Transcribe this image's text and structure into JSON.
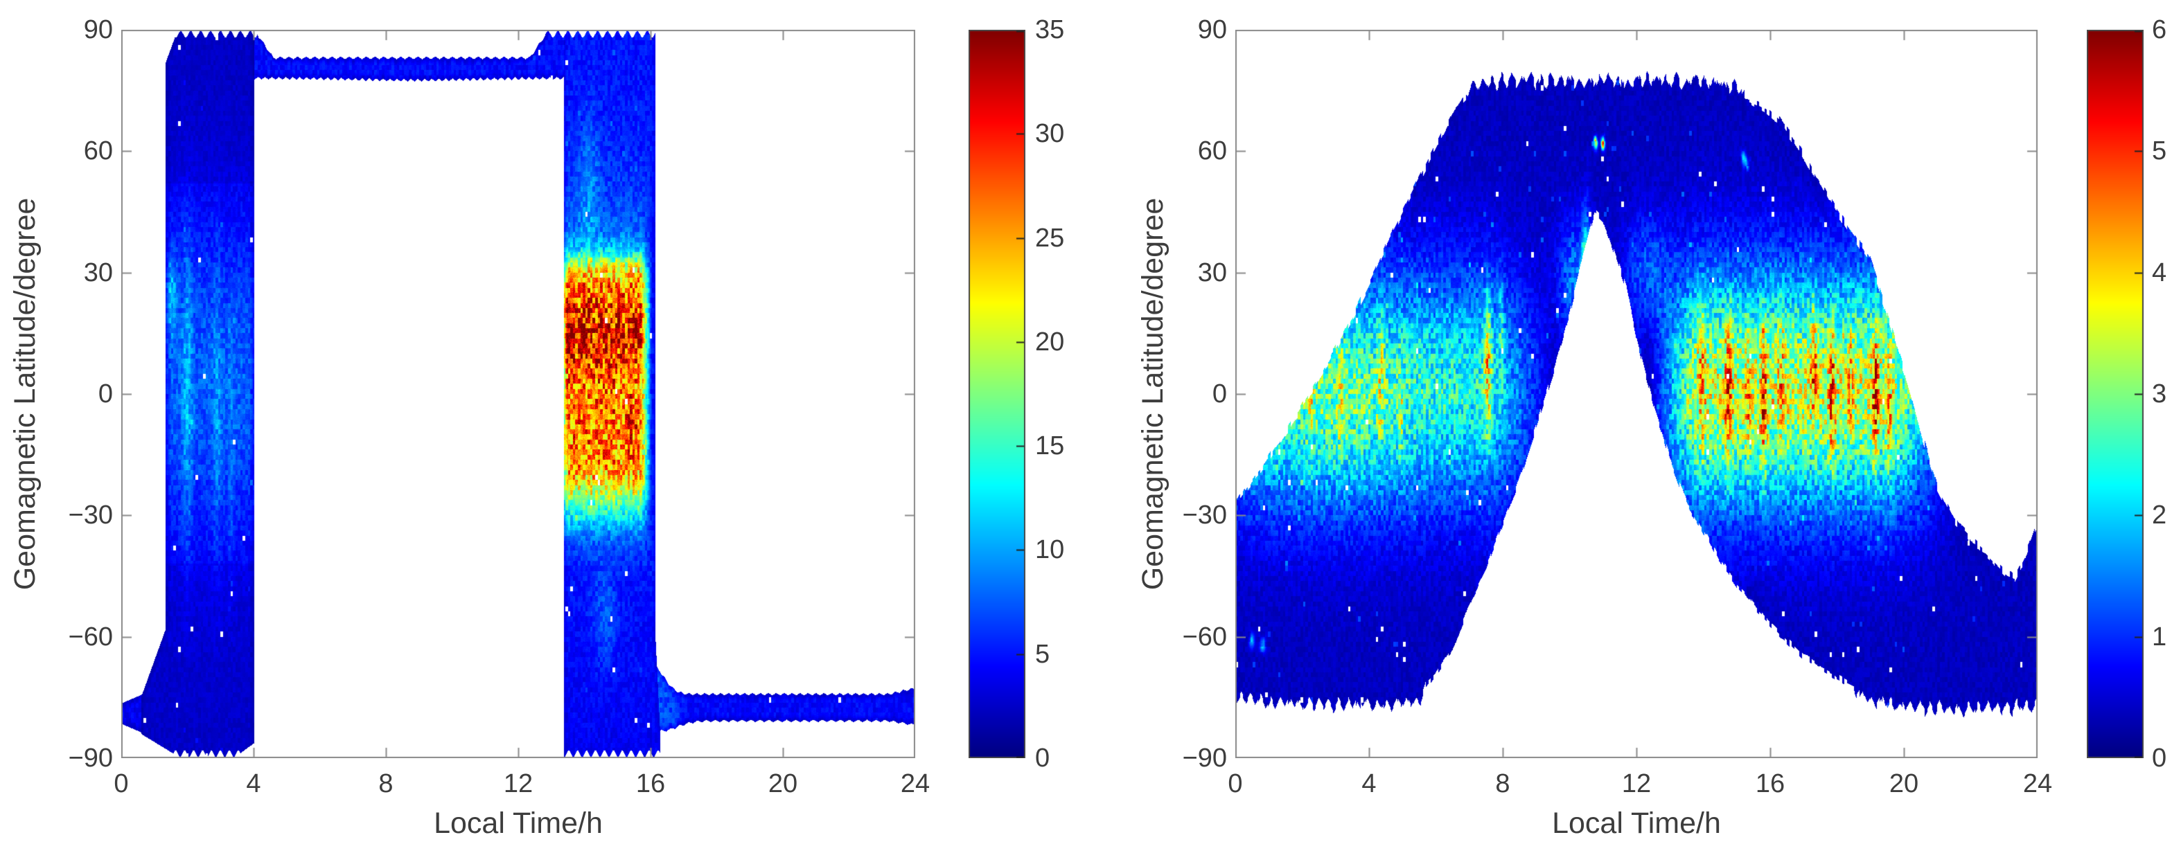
{
  "figure": {
    "background": "#ffffff",
    "axis_color": "#8a8a8a",
    "text_color": "#3d3d3d",
    "colorbar_border": "#4a4a4a"
  },
  "chart_data": [
    {
      "type": "scatter-density",
      "xlabel": "Local Time/h",
      "ylabel": "Geomagnetic Latitude/degree",
      "xlim": [
        0,
        24
      ],
      "ylim": [
        -90,
        90
      ],
      "xticks": [
        0,
        4,
        8,
        12,
        16,
        20,
        24
      ],
      "yticks": [
        90,
        60,
        30,
        0,
        -30,
        -60,
        -90
      ],
      "ytick_labels": [
        "90",
        "60",
        "30",
        "0",
        "−30",
        "−60",
        "−90"
      ],
      "grid": false,
      "colorbar": {
        "min": 0,
        "max": 35,
        "ticks": [
          0,
          5,
          10,
          15,
          20,
          25,
          30,
          35
        ],
        "colormap": "jet",
        "position": "right"
      },
      "model": {
        "seed": 7,
        "dawn_column": {
          "t0": 1.35,
          "t1": 4.02,
          "top_corner_lat": 82,
          "top_corner_slope": 0.045,
          "south_merge_lat": -58,
          "south_merge_t": 0.6,
          "bottom_taper": {
            "t": 1.8,
            "slope": 5
          },
          "bottom_rise": {
            "t": 3.4,
            "slope": 6
          },
          "base": 2.8,
          "equator": {
            "amp": 4.6,
            "latc": 3,
            "latw": 42
          },
          "polar_dim": 0.8,
          "south_dim": 0.85,
          "streaks": [
            {
              "a": 3.4,
              "t": 2.0,
              "tw": 0.16,
              "latc": 0,
              "latw": 40
            },
            {
              "a": 2.4,
              "t": 2.9,
              "tw": 0.13,
              "latc": -8,
              "latw": 38
            },
            {
              "a": 1.6,
              "t": 3.3,
              "tw": 0.1,
              "latc": -20,
              "latw": 30
            },
            {
              "a": 5.0,
              "t": 1.5,
              "tw": 0.18,
              "latc": 25,
              "latw": 10
            }
          ]
        },
        "sw_arm": {
          "t1": 1.5,
          "top0": -76.5,
          "top_slope": 3.5,
          "bot0": -81.5,
          "bot_slope": -3.5,
          "value": 4.0
        },
        "north_band": {
          "t0": 4.0,
          "t1": 13.45,
          "top": 82.7,
          "bottom": 78.4,
          "bottom_sag": {
            "a": 0.5,
            "t": 8.8,
            "tw": 2.5
          },
          "flare_in": {
            "t": 4.6,
            "slope": 12
          },
          "flare_out": {
            "t": 12.35,
            "slope": 12
          },
          "value": 4.6
        },
        "dusk_column": {
          "t0": 13.38,
          "t1": 16.15,
          "lat_profile": [
            [
              -90,
              3.8
            ],
            [
              -70,
              4.3
            ],
            [
              -55,
              4.6
            ],
            [
              -45,
              4.9
            ],
            [
              -38,
              6.5
            ],
            [
              -33,
              10
            ],
            [
              -29,
              14
            ],
            [
              -25,
              19
            ],
            [
              -21,
              23
            ],
            [
              -16,
              25.5
            ],
            [
              -10,
              26
            ],
            [
              -4,
              25.5
            ],
            [
              2,
              26
            ],
            [
              8,
              28
            ],
            [
              14,
              29.5
            ],
            [
              20,
              28.5
            ],
            [
              26,
              26
            ],
            [
              30,
              22.5
            ],
            [
              33,
              17
            ],
            [
              36,
              11
            ],
            [
              40,
              8
            ],
            [
              48,
              6.5
            ],
            [
              60,
              5.5
            ],
            [
              75,
              5
            ],
            [
              90,
              4.8
            ]
          ],
          "hot_window": {
            "t_on": 13.3,
            "rise": 0.09,
            "t_off": 16.02,
            "fall": 0.32
          },
          "streaks": [
            {
              "a": 3.2,
              "t": 13.55,
              "tw": 0.13,
              "latc": 15,
              "latw": 10
            },
            {
              "a": 3.0,
              "t": 14.0,
              "tw": 0.12,
              "latc": 13,
              "latw": 11
            },
            {
              "a": 2.8,
              "t": 14.45,
              "tw": 0.11,
              "latc": 9,
              "latw": 10
            },
            {
              "a": 2.2,
              "t": 14.8,
              "tw": 0.12,
              "latc": 2,
              "latw": 12
            },
            {
              "a": 2.6,
              "t": 15.35,
              "tw": 0.12,
              "latc": -4,
              "latw": 12
            },
            {
              "a": 1.8,
              "t": 13.8,
              "tw": 0.1,
              "latc": -13,
              "latw": 8
            },
            {
              "a": 3.0,
              "t": 14.15,
              "tw": 0.3,
              "latc": 52,
              "latw": 16
            },
            {
              "a": 2.5,
              "t": 14.6,
              "tw": 0.4,
              "latc": -55,
              "latw": 13
            }
          ]
        },
        "south_band": {
          "t0": 16.02,
          "t1": 24,
          "top": -74.5,
          "bottom": -80.5,
          "junction_top": {
            "a": 7,
            "t": 16.05,
            "tw": 0.5
          },
          "junction_bottom": {
            "a": 2.5,
            "t": 16.3,
            "tw": 0.7
          },
          "end_bulge": {
            "t": 23.2,
            "top": 1.5,
            "bottom": 1.0
          },
          "value": 4.3,
          "junction_glow": {
            "a": 2.6,
            "t": 16.4,
            "tw": 0.5
          }
        },
        "serration": {
          "period": 0.3,
          "depth": 2.2
        },
        "speckle": {
          "cell_t": 0.075,
          "cell_lat": 1.25,
          "mult_min": 0.78,
          "mult_range": 0.48,
          "fine": 0.14,
          "pinhole": 0.9965,
          "bright": 0.995,
          "bright_add": 0.06
        }
      }
    },
    {
      "type": "scatter-density",
      "xlabel": "Local Time/h",
      "ylabel": "Geomagnetic Latitude/degree",
      "xlim": [
        0,
        24
      ],
      "ylim": [
        -90,
        90
      ],
      "xticks": [
        0,
        4,
        8,
        12,
        16,
        20,
        24
      ],
      "yticks": [
        90,
        60,
        30,
        0,
        -30,
        -60,
        -90
      ],
      "ytick_labels": [
        "90",
        "60",
        "30",
        "0",
        "−30",
        "−60",
        "−90"
      ],
      "grid": false,
      "colorbar": {
        "min": 0,
        "max": 6,
        "ticks": [
          0,
          1,
          2,
          3,
          4,
          5,
          6
        ],
        "colormap": "jet",
        "position": "right"
      },
      "model": {
        "seed": 13,
        "base": 0.38,
        "edge_fade": 9,
        "envelope": {
          "top": [
            [
              0,
              -27
            ],
            [
              1,
              -16
            ],
            [
              2,
              -3
            ],
            [
              3,
              11
            ],
            [
              4,
              27
            ],
            [
              5,
              45
            ],
            [
              6,
              61
            ],
            [
              6.5,
              69
            ],
            [
              7,
              74
            ],
            [
              7.5,
              75.5
            ],
            [
              8,
              76
            ],
            [
              10,
              76
            ],
            [
              12,
              76
            ],
            [
              14,
              76
            ],
            [
              14.5,
              75.5
            ],
            [
              15,
              74
            ],
            [
              15.7,
              71
            ],
            [
              16.3,
              67.5
            ],
            [
              17,
              59
            ],
            [
              18,
              45
            ],
            [
              19,
              33
            ],
            [
              20,
              6
            ],
            [
              20.5,
              -9
            ],
            [
              21,
              -23
            ],
            [
              21.5,
              -31
            ],
            [
              22,
              -36
            ],
            [
              22.5,
              -39.5
            ],
            [
              23,
              -44
            ],
            [
              23.3,
              -45.5
            ],
            [
              23.6,
              -41
            ],
            [
              24,
              -32
            ]
          ],
          "bottom": [
            [
              0,
              -73.5
            ],
            [
              1,
              -75
            ],
            [
              2,
              -75.5
            ],
            [
              3,
              -75.5
            ],
            [
              4,
              -75.5
            ],
            [
              5,
              -75
            ],
            [
              5.5,
              -74
            ],
            [
              6,
              -69
            ],
            [
              6.5,
              -63
            ],
            [
              7,
              -52
            ],
            [
              7.5,
              -43
            ],
            [
              8,
              -32
            ],
            [
              8.5,
              -21
            ],
            [
              9,
              -8
            ],
            [
              9.5,
              5
            ],
            [
              10,
              20
            ],
            [
              10.4,
              34
            ],
            [
              10.75,
              45
            ],
            [
              11,
              43
            ],
            [
              11.3,
              36
            ],
            [
              11.7,
              26
            ],
            [
              12,
              14
            ],
            [
              12.5,
              -2
            ],
            [
              13,
              -16
            ],
            [
              13.5,
              -27
            ],
            [
              14,
              -34
            ],
            [
              14.5,
              -41
            ],
            [
              15,
              -47
            ],
            [
              16,
              -57
            ],
            [
              17,
              -65
            ],
            [
              18,
              -70
            ],
            [
              19,
              -74
            ],
            [
              20,
              -76
            ],
            [
              21,
              -76.5
            ],
            [
              22,
              -76.5
            ],
            [
              23,
              -76.5
            ],
            [
              24,
              -75.5
            ]
          ],
          "serration": {
            "period": 0.29,
            "depth": 2.6,
            "top_min": 73,
            "bottom_max": -72
          }
        },
        "lat_glow": {
          "latc": 1,
          "latw": 29
        },
        "legs": [
          {
            "amp": 2.0,
            "t_on": -1.0,
            "rise_end": 0.5,
            "t_hold": 7.6,
            "t_off": 9.6
          },
          {
            "amp": 3.1,
            "t_on": 12.4,
            "rise_end": 13.8,
            "t_hold": 19.6,
            "t_off": 21.8
          }
        ],
        "flank_glows": [
          {
            "a": 1.1,
            "t": 10.15,
            "tw": 0.55,
            "latc": 28,
            "latw": 16
          },
          {
            "a": 0.9,
            "t": 12.3,
            "tw": 0.7,
            "latc": 30,
            "latw": 15
          },
          {
            "a": 3.4,
            "t": 10.5,
            "tw": 0.13,
            "latc": 24,
            "latw": 16
          },
          {
            "a": 0.6,
            "t": 3.0,
            "tw": 2.2,
            "latc": -5,
            "latw": 25
          }
        ],
        "streaks": [
          {
            "a": 0.9,
            "t": 2.25,
            "tw": 0.1,
            "latc": 5,
            "latw": 18
          },
          {
            "a": 0.8,
            "t": 3.15,
            "tw": 0.09,
            "latc": 0,
            "latw": 16
          },
          {
            "a": 1.0,
            "t": 4.35,
            "tw": 0.1,
            "latc": 5,
            "latw": 16
          },
          {
            "a": 0.8,
            "t": 4.95,
            "tw": 0.08,
            "latc": -5,
            "latw": 14
          },
          {
            "a": 1.9,
            "t": 7.55,
            "tw": 0.11,
            "latc": 7,
            "latw": 17
          },
          {
            "a": 1.0,
            "t": 7.95,
            "tw": 0.08,
            "latc": 15,
            "latw": 12
          },
          {
            "a": 1.4,
            "t": 13.95,
            "tw": 0.1,
            "latc": 2,
            "latw": 15
          },
          {
            "a": 1.8,
            "t": 14.75,
            "tw": 0.11,
            "latc": 0,
            "latw": 18
          },
          {
            "a": 1.3,
            "t": 15.35,
            "tw": 0.08,
            "latc": -2,
            "latw": 14
          },
          {
            "a": 1.9,
            "t": 15.8,
            "tw": 0.1,
            "latc": -2,
            "latw": 16
          },
          {
            "a": 1.2,
            "t": 16.35,
            "tw": 0.09,
            "latc": 5,
            "latw": 14
          },
          {
            "a": 1.5,
            "t": 17.3,
            "tw": 0.1,
            "latc": 8,
            "latw": 14
          },
          {
            "a": 1.8,
            "t": 17.85,
            "tw": 0.1,
            "latc": -2,
            "latw": 16
          },
          {
            "a": 1.2,
            "t": 18.4,
            "tw": 0.08,
            "latc": 3,
            "latw": 12
          },
          {
            "a": 1.9,
            "t": 19.15,
            "tw": 0.1,
            "latc": 0,
            "latw": 16
          },
          {
            "a": 1.2,
            "t": 19.55,
            "tw": 0.08,
            "latc": -5,
            "latw": 12
          }
        ],
        "dots": [
          {
            "a": 4.0,
            "t": 10.78,
            "tw": 0.06,
            "latc": 62,
            "latw": 1.5
          },
          {
            "a": 4.0,
            "t": 11.0,
            "tw": 0.06,
            "latc": 62,
            "latw": 1.5
          },
          {
            "a": 1.5,
            "t": 15.2,
            "tw": 0.07,
            "latc": 58.5,
            "latw": 1.6
          },
          {
            "a": 1.5,
            "t": 15.3,
            "tw": 0.07,
            "latc": 57,
            "latw": 1.6
          },
          {
            "a": 1.3,
            "t": 0.5,
            "tw": 0.08,
            "latc": -61,
            "latw": 1.8
          },
          {
            "a": 1.3,
            "t": 0.82,
            "tw": 0.09,
            "latc": -62,
            "latw": 1.8
          },
          {
            "a": 4.5,
            "t": 10.12,
            "tw": 0.05,
            "latc": -8,
            "latw": 2.0
          }
        ],
        "speckle": {
          "cell_t": 0.075,
          "cell_lat": 1.25,
          "mult_min": 0.66,
          "mult_range": 0.62,
          "fine": 0.14,
          "pinhole": 0.9965,
          "bright": 0.995,
          "bright_add": 0.12
        }
      }
    }
  ]
}
